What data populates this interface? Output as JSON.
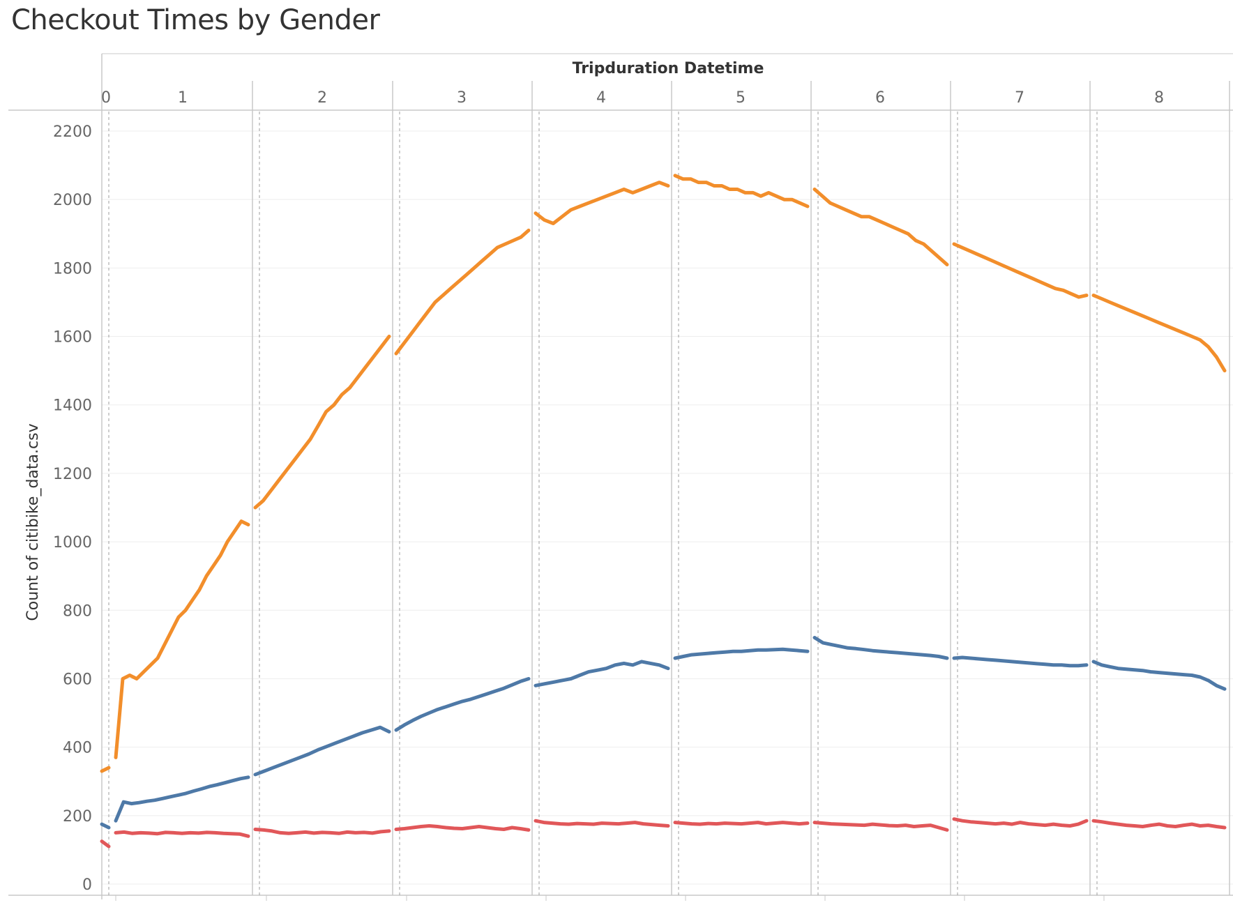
{
  "title": "Checkout Times by Gender",
  "colors": {
    "series_orange": "#f28e2b",
    "series_blue": "#4e79a7",
    "series_red": "#e15759",
    "grid": "#eeeeee",
    "rule": "#c8c8c8",
    "ref": "#9e9e9e"
  },
  "chart_data": {
    "type": "line",
    "title": "Checkout Times by Gender",
    "xlabel": "Tripduration Datetime",
    "ylabel": "Count of citibike_data.csv",
    "ylim": [
      0,
      2200
    ],
    "y_ticks": [
      0,
      200,
      400,
      600,
      800,
      1000,
      1200,
      1400,
      1600,
      1800,
      2000,
      2200
    ],
    "panels": [
      "0",
      "1",
      "2",
      "3",
      "4",
      "5",
      "6",
      "7",
      "8"
    ],
    "grid": "horizontal",
    "legend": "none",
    "series": [
      {
        "color": "#f28e2b",
        "segments": [
          [
            330,
            340
          ],
          [
            370,
            600,
            610,
            600,
            620,
            640,
            660,
            700,
            740,
            780,
            800,
            830,
            860,
            900,
            930,
            960,
            1000,
            1030,
            1060,
            1050
          ],
          [
            1100,
            1120,
            1150,
            1180,
            1210,
            1240,
            1270,
            1300,
            1340,
            1380,
            1400,
            1430,
            1450,
            1480,
            1510,
            1540,
            1570,
            1600
          ],
          [
            1550,
            1580,
            1610,
            1640,
            1670,
            1700,
            1720,
            1740,
            1760,
            1780,
            1800,
            1820,
            1840,
            1860,
            1870,
            1880,
            1890,
            1910
          ],
          [
            1960,
            1940,
            1930,
            1950,
            1970,
            1980,
            1990,
            2000,
            2010,
            2020,
            2030,
            2020,
            2030,
            2040,
            2050,
            2040
          ],
          [
            2070,
            2060,
            2060,
            2050,
            2050,
            2040,
            2040,
            2030,
            2030,
            2020,
            2020,
            2010,
            2020,
            2010,
            2000,
            2000,
            1990,
            1980
          ],
          [
            2030,
            2010,
            1990,
            1980,
            1970,
            1960,
            1950,
            1950,
            1940,
            1930,
            1920,
            1910,
            1900,
            1880,
            1870,
            1850,
            1830,
            1810
          ],
          [
            1870,
            1860,
            1850,
            1840,
            1830,
            1820,
            1810,
            1800,
            1790,
            1780,
            1770,
            1760,
            1750,
            1740,
            1735,
            1725,
            1715,
            1720
          ],
          [
            1720,
            1710,
            1700,
            1690,
            1680,
            1670,
            1660,
            1650,
            1640,
            1630,
            1620,
            1610,
            1600,
            1590,
            1570,
            1540,
            1500
          ]
        ]
      },
      {
        "color": "#4e79a7",
        "segments": [
          [
            175,
            165
          ],
          [
            185,
            240,
            235,
            238,
            242,
            245,
            250,
            255,
            260,
            265,
            272,
            278,
            285,
            290,
            296,
            302,
            308,
            312
          ],
          [
            320,
            330,
            340,
            350,
            360,
            370,
            380,
            392,
            402,
            412,
            422,
            432,
            442,
            450,
            458,
            445
          ],
          [
            450,
            465,
            478,
            490,
            500,
            510,
            518,
            526,
            534,
            540,
            548,
            556,
            564,
            572,
            582,
            592,
            600
          ],
          [
            580,
            585,
            590,
            595,
            600,
            610,
            620,
            625,
            630,
            640,
            645,
            640,
            650,
            645,
            640,
            630
          ],
          [
            660,
            665,
            670,
            672,
            674,
            676,
            678,
            680,
            680,
            682,
            684,
            684,
            685,
            686,
            684,
            682,
            680
          ],
          [
            720,
            705,
            700,
            695,
            690,
            688,
            685,
            682,
            680,
            678,
            676,
            674,
            672,
            670,
            668,
            665,
            660
          ],
          [
            660,
            662,
            660,
            658,
            656,
            654,
            652,
            650,
            648,
            646,
            644,
            642,
            640,
            640,
            638,
            638,
            640
          ],
          [
            650,
            640,
            635,
            630,
            628,
            626,
            624,
            620,
            618,
            616,
            614,
            612,
            610,
            605,
            595,
            580,
            570
          ]
        ]
      },
      {
        "color": "#e15759",
        "segments": [
          [
            125,
            110
          ],
          [
            150,
            152,
            148,
            150,
            149,
            147,
            151,
            150,
            148,
            150,
            149,
            151,
            150,
            148,
            147,
            146,
            140
          ],
          [
            160,
            158,
            155,
            150,
            148,
            150,
            152,
            149,
            151,
            150,
            148,
            152,
            150,
            151,
            149,
            153,
            155
          ],
          [
            160,
            162,
            165,
            168,
            170,
            168,
            165,
            163,
            162,
            165,
            168,
            165,
            162,
            160,
            165,
            162,
            158
          ],
          [
            185,
            180,
            178,
            176,
            175,
            177,
            176,
            175,
            178,
            177,
            176,
            178,
            180,
            176,
            174,
            172,
            170
          ],
          [
            180,
            178,
            176,
            175,
            177,
            176,
            178,
            177,
            176,
            178,
            180,
            176,
            178,
            180,
            178,
            176,
            178
          ],
          [
            180,
            178,
            176,
            175,
            174,
            173,
            172,
            175,
            173,
            171,
            170,
            172,
            168,
            170,
            172,
            165,
            158
          ],
          [
            190,
            185,
            182,
            180,
            178,
            176,
            178,
            175,
            180,
            176,
            174,
            172,
            175,
            172,
            170,
            175,
            185
          ],
          [
            185,
            182,
            178,
            175,
            172,
            170,
            168,
            172,
            175,
            170,
            168,
            172,
            175,
            170,
            172,
            168,
            165
          ]
        ]
      }
    ]
  }
}
